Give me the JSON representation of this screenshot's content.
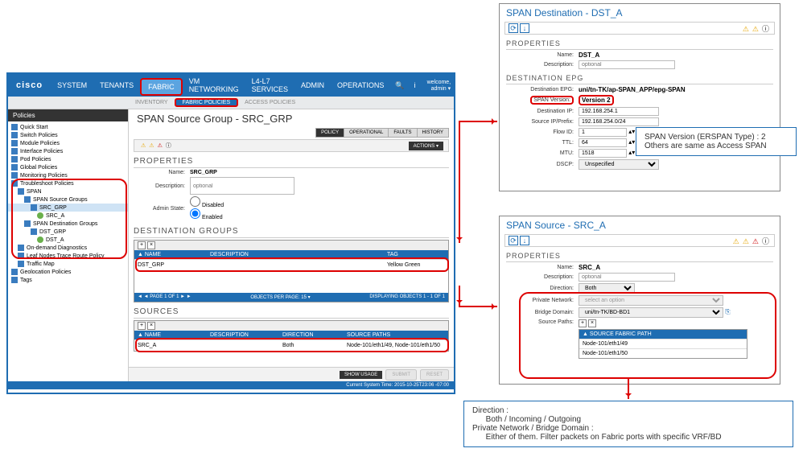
{
  "colors": {
    "primary": "#1f6db2",
    "highlight": "#d00",
    "dark": "#333333"
  },
  "topnav": {
    "logo": "cisco",
    "items": [
      "SYSTEM",
      "TENANTS",
      "FABRIC",
      "VM NETWORKING",
      "L4-L7 SERVICES",
      "ADMIN",
      "OPERATIONS"
    ],
    "active_index": 2,
    "welcome": "welcome, admin ▾"
  },
  "subnav": {
    "items": [
      "INVENTORY",
      "FABRIC POLICIES",
      "ACCESS POLICIES"
    ],
    "active_index": 1
  },
  "sidebar": {
    "title": "Policies",
    "items": [
      {
        "ind": 0,
        "ico": "folder",
        "label": "Quick Start"
      },
      {
        "ind": 0,
        "ico": "folder",
        "label": "Switch Policies"
      },
      {
        "ind": 0,
        "ico": "folder",
        "label": "Module Policies"
      },
      {
        "ind": 0,
        "ico": "folder",
        "label": "Interface Policies"
      },
      {
        "ind": 0,
        "ico": "folder",
        "label": "Pod Policies"
      },
      {
        "ind": 0,
        "ico": "folder",
        "label": "Global Policies"
      },
      {
        "ind": 0,
        "ico": "folder",
        "label": "Monitoring Policies"
      },
      {
        "ind": 0,
        "ico": "folder",
        "label": "Troubleshoot Policies",
        "hl": true
      },
      {
        "ind": 1,
        "ico": "folder",
        "label": "SPAN"
      },
      {
        "ind": 2,
        "ico": "folder",
        "label": "SPAN Source Groups"
      },
      {
        "ind": 3,
        "ico": "folder",
        "label": "SRC_GRP",
        "sel": true
      },
      {
        "ind": 4,
        "ico": "leaf",
        "label": "SRC_A"
      },
      {
        "ind": 2,
        "ico": "folder",
        "label": "SPAN Destination Groups"
      },
      {
        "ind": 3,
        "ico": "folder",
        "label": "DST_GRP"
      },
      {
        "ind": 4,
        "ico": "leaf",
        "label": "DST_A"
      },
      {
        "ind": 1,
        "ico": "folder",
        "label": "On-demand Diagnostics"
      },
      {
        "ind": 1,
        "ico": "folder",
        "label": "Leaf Nodes Trace Route Policy"
      },
      {
        "ind": 1,
        "ico": "folder",
        "label": "Traffic Map"
      },
      {
        "ind": 0,
        "ico": "folder",
        "label": "Geolocation Policies"
      },
      {
        "ind": 0,
        "ico": "folder",
        "label": "Tags"
      }
    ]
  },
  "content": {
    "title": "SPAN Source Group - SRC_GRP",
    "tabs": [
      "POLICY",
      "OPERATIONAL",
      "FAULTS",
      "HISTORY"
    ],
    "active_tab": 0,
    "actions": "ACTIONS ▾",
    "properties": {
      "header": "PROPERTIES",
      "name_label": "Name:",
      "name": "SRC_GRP",
      "desc_label": "Description:",
      "desc_placeholder": "optional",
      "admin_label": "Admin State:",
      "admin_disabled": "Disabled",
      "admin_enabled": "Enabled",
      "admin_value": "enabled"
    },
    "dest_groups": {
      "header": "DESTINATION GROUPS",
      "cols": [
        "▲ NAME",
        "DESCRIPTION",
        "TAG"
      ],
      "rows": [
        {
          "name": "DST_GRP",
          "desc": "",
          "tag": "Yellow Green"
        }
      ],
      "footer_left": "◄ ◄  PAGE 1 OF 1  ► ►",
      "footer_mid": "OBJECTS PER PAGE: 15 ▾",
      "footer_right": "DISPLAYING OBJECTS 1 - 1 OF 1"
    },
    "sources": {
      "header": "SOURCES",
      "cols": [
        "▲ NAME",
        "DESCRIPTION",
        "DIRECTION",
        "SOURCE PATHS"
      ],
      "rows": [
        {
          "name": "SRC_A",
          "desc": "",
          "dir": "Both",
          "paths": "Node-101/eth1/49, Node-101/eth1/50"
        }
      ]
    },
    "buttons": {
      "show": "SHOW USAGE",
      "submit": "SUBMIT",
      "reset": "RESET"
    },
    "status": "Current System Time: 2015-10-25T23:06 -07:00"
  },
  "dest_panel": {
    "title": "SPAN Destination - DST_A",
    "props_h": "PROPERTIES",
    "name_label": "Name:",
    "name": "DST_A",
    "desc_label": "Description:",
    "desc_placeholder": "optional",
    "epg_h": "DESTINATION EPG",
    "epg_label": "Destination EPG:",
    "epg": "uni/tn-TK/ap-SPAN_APP/epg-SPAN",
    "ver_label": "SPAN Version:",
    "ver": "Version 2",
    "dip_label": "Destination IP:",
    "dip": "192.168.254.1",
    "sip_label": "Source IP/Prefix:",
    "sip": "192.168.254.0/24",
    "flow_label": "Flow ID:",
    "flow": "1",
    "ttl_label": "TTL:",
    "ttl": "64",
    "mtu_label": "MTU:",
    "mtu": "1518",
    "dscp_label": "DSCP:",
    "dscp": "Unspecified"
  },
  "src_panel": {
    "title": "SPAN Source - SRC_A",
    "props_h": "PROPERTIES",
    "name_label": "Name:",
    "name": "SRC_A",
    "desc_label": "Description:",
    "desc_placeholder": "optional",
    "dir_label": "Direction:",
    "dir": "Both",
    "pn_label": "Private Network:",
    "pn_placeholder": "select an option",
    "bd_label": "Bridge Domain:",
    "bd": "uni/tn-TK/BD-BD1",
    "sp_label": "Source Paths:",
    "sp_head": "▲ SOURCE FABRIC PATH",
    "sp_rows": [
      "Node-101/eth1/49",
      "Node-101/eth1/50"
    ]
  },
  "callout1": {
    "line1": "SPAN Version (ERSPAN Type) : 2",
    "line2": "Others are same as Access SPAN"
  },
  "callout2": {
    "line1": "Direction :",
    "line2": "      Both / Incoming / Outgoing",
    "line3": "Private Network / Bridge Domain :",
    "line4": "      Either of them. Filter packets on Fabric ports with specific VRF/BD"
  }
}
